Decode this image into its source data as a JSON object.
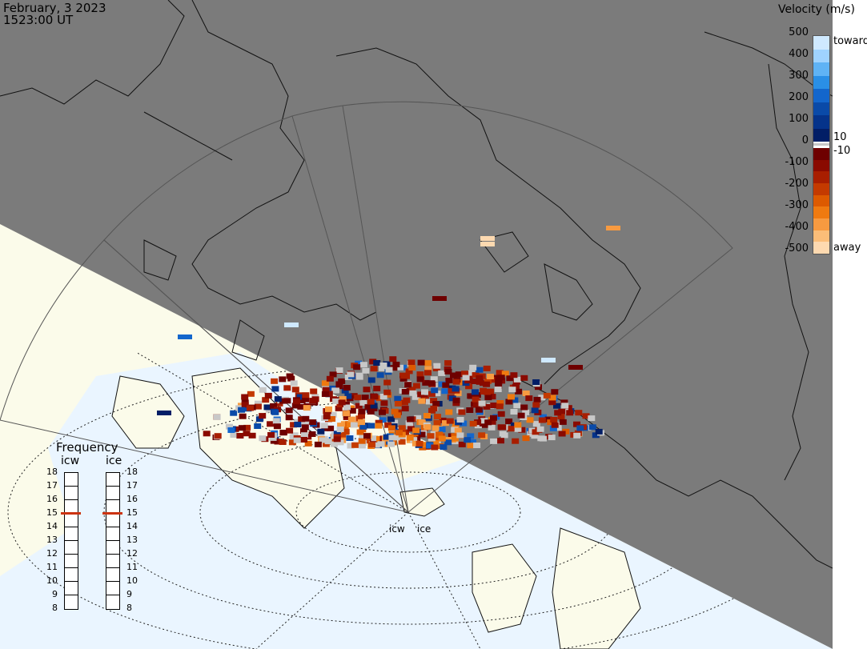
{
  "header": {
    "date": "February, 3 2023",
    "time": "1523:00 UT"
  },
  "colorbar": {
    "title": "Velocity (m/s)",
    "ticks_left": [
      "500",
      "400",
      "300",
      "200",
      "100",
      "0",
      "-100",
      "-200",
      "-300",
      "-400",
      "-500"
    ],
    "tick_10": "10",
    "tick_neg10": "-10",
    "toward_label": "toward",
    "away_label": "away",
    "toward_colors": [
      "#cfe9ff",
      "#9fd3ff",
      "#5fb3f5",
      "#2a8fe6",
      "#1366cc",
      "#0a4aa8",
      "#05338a",
      "#021e66"
    ],
    "away_colors": [
      "#6e0000",
      "#8a0a00",
      "#a81e00",
      "#c43a00",
      "#dd5a00",
      "#ef7a10",
      "#f79a40",
      "#fbbd78",
      "#fdd9b0"
    ],
    "gray_label_color": "#c8c8c8"
  },
  "frequency": {
    "title": "Frequency",
    "col1_label": "icw",
    "col2_label": "ice",
    "scale": [
      "18",
      "17",
      "16",
      "15",
      "14",
      "13",
      "12",
      "11",
      "10",
      "9",
      "8"
    ],
    "col1_value": 15,
    "col2_value": 15,
    "marker_color": "#cc3311"
  },
  "sites": {
    "label1": "icw",
    "label2": "ice"
  },
  "colors": {
    "night": "#7b7b7b",
    "land_day": "#fbfbea",
    "ocean_day": "#eaf5ff",
    "coast": "#111111"
  }
}
